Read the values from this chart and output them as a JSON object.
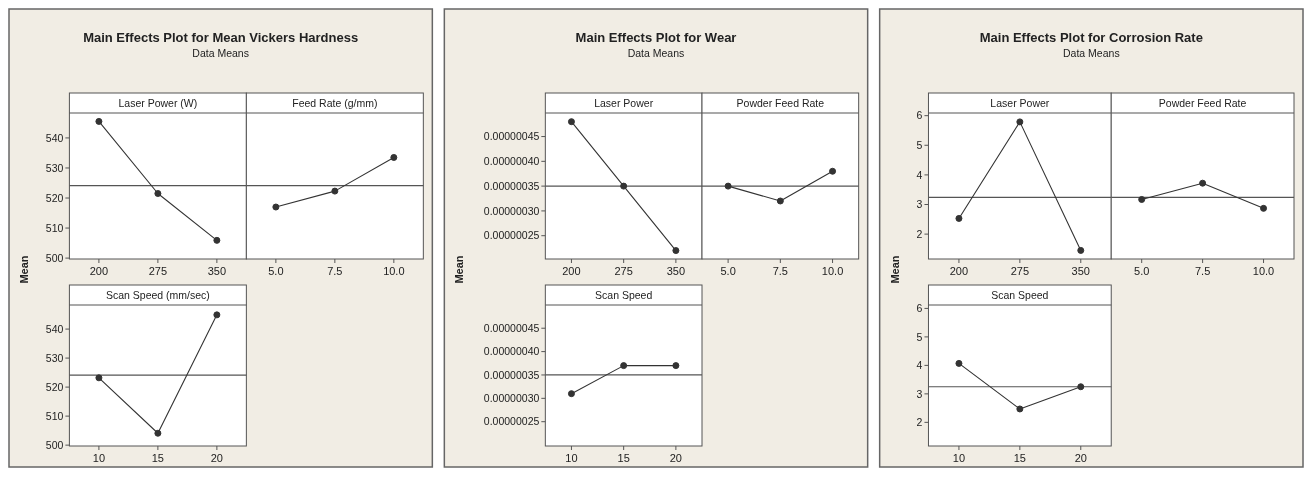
{
  "chart_data": [
    {
      "type": "line",
      "title": "Main Effects Plot for Mean Vickers Hardness",
      "subtitle": "Data Means",
      "ylabel": "Mean",
      "xlabel": "Laser Power (W)",
      "categories": [
        "200",
        "275",
        "350"
      ],
      "series": [
        {
          "color": "#333333",
          "values": [
            545.5,
            521.5,
            505.9
          ]
        }
      ],
      "ylim": [
        499.7,
        548.3
      ],
      "yticks": [
        500,
        510,
        520,
        530,
        540
      ],
      "ref_lines": [
        {
          "axis": "y",
          "value": 524.1,
          "color": "#555555"
        }
      ],
      "marker": "circle",
      "grid": false
    },
    {
      "type": "line",
      "xlabel": "Feed Rate (g/mm)",
      "categories": [
        "5.0",
        "7.5",
        "10.0"
      ],
      "series": [
        {
          "color": "#333333",
          "values": [
            517.0,
            522.3,
            533.5
          ]
        }
      ],
      "ylim": [
        499.7,
        548.3
      ],
      "ref_lines": [
        {
          "axis": "y",
          "value": 524.1,
          "color": "#555555"
        }
      ],
      "marker": "circle",
      "grid": false,
      "tick_labels": "x"
    },
    {
      "type": "line",
      "xlabel": "Scan Speed (mm/sec)",
      "categories": [
        "10",
        "15",
        "20"
      ],
      "series": [
        {
          "color": "#333333",
          "values": [
            523.2,
            504.1,
            544.9
          ]
        }
      ],
      "ylim": [
        499.7,
        548.3
      ],
      "yticks": [
        500,
        510,
        520,
        530,
        540
      ],
      "ref_lines": [
        {
          "axis": "y",
          "value": 524.1,
          "color": "#555555"
        }
      ],
      "marker": "circle",
      "grid": false
    },
    {
      "type": "line",
      "title": "Main Effects Plot for Wear",
      "subtitle": "Data Means",
      "ylabel": "Mean",
      "xlabel": "Laser Power",
      "categories": [
        "200",
        "275",
        "350"
      ],
      "series": [
        {
          "color": "#333333",
          "values": [
            4.8e-07,
            3.5e-07,
            2.2e-07
          ]
        }
      ],
      "ylim": [
        2.03e-07,
        4.975e-07
      ],
      "yticks": [
        {
          "value": 2.5e-07,
          "label": "0.00000025"
        },
        {
          "value": 3e-07,
          "label": "0.00000030"
        },
        {
          "value": 3.5e-07,
          "label": "0.00000035"
        },
        {
          "value": 4e-07,
          "label": "0.00000040"
        },
        {
          "value": 4.5e-07,
          "label": "0.00000045"
        }
      ],
      "ref_lines": [
        {
          "axis": "y",
          "value": 3.5e-07,
          "color": "#555555"
        }
      ],
      "marker": "circle",
      "grid": false
    },
    {
      "type": "line",
      "xlabel": "Powder Feed Rate",
      "categories": [
        "5.0",
        "7.5",
        "10.0"
      ],
      "series": [
        {
          "color": "#333333",
          "values": [
            3.5e-07,
            3.2e-07,
            3.8e-07
          ]
        }
      ],
      "ylim": [
        2.03e-07,
        4.975e-07
      ],
      "ref_lines": [
        {
          "axis": "y",
          "value": 3.5e-07,
          "color": "#555555"
        }
      ],
      "marker": "circle",
      "grid": false,
      "tick_labels": "x"
    },
    {
      "type": "line",
      "xlabel": "Scan Speed",
      "categories": [
        "10",
        "15",
        "20"
      ],
      "series": [
        {
          "color": "#333333",
          "values": [
            3.1e-07,
            3.7e-07,
            3.7e-07
          ]
        }
      ],
      "ylim": [
        1.98e-07,
        4.997e-07
      ],
      "yticks": [
        {
          "value": 2.5e-07,
          "label": "0.00000025"
        },
        {
          "value": 3e-07,
          "label": "0.00000030"
        },
        {
          "value": 3.5e-07,
          "label": "0.00000035"
        },
        {
          "value": 4e-07,
          "label": "0.00000040"
        },
        {
          "value": 4.5e-07,
          "label": "0.00000045"
        }
      ],
      "ref_lines": [
        {
          "axis": "y",
          "value": 3.5e-07,
          "color": "#555555"
        }
      ],
      "marker": "circle",
      "grid": false
    },
    {
      "type": "line",
      "title": "Main Effects Plot for Corrosion Rate",
      "subtitle": "Data Means",
      "ylabel": "Mean",
      "xlabel": "Laser Power",
      "categories": [
        "200",
        "275",
        "350"
      ],
      "series": [
        {
          "color": "#333333",
          "values": [
            2.53,
            5.79,
            1.45
          ]
        }
      ],
      "ylim": [
        1.16,
        6.09
      ],
      "yticks": [
        2,
        3,
        4,
        5,
        6
      ],
      "ref_lines": [
        {
          "axis": "y",
          "value": 3.24,
          "color": "#555555"
        }
      ],
      "marker": "circle",
      "grid": false
    },
    {
      "type": "line",
      "xlabel": "Powder Feed Rate",
      "categories": [
        "5.0",
        "7.5",
        "10.0"
      ],
      "series": [
        {
          "color": "#333333",
          "values": [
            3.17,
            3.72,
            2.87
          ]
        }
      ],
      "ylim": [
        1.16,
        6.09
      ],
      "ref_lines": [
        {
          "axis": "y",
          "value": 3.24,
          "color": "#555555"
        }
      ],
      "marker": "circle",
      "grid": false,
      "tick_labels": "x"
    },
    {
      "type": "line",
      "xlabel": "Scan Speed",
      "categories": [
        "10",
        "15",
        "20"
      ],
      "series": [
        {
          "color": "#333333",
          "values": [
            4.07,
            2.47,
            3.25
          ]
        }
      ],
      "ylim": [
        1.17,
        6.12
      ],
      "yticks": [
        2,
        3,
        4,
        5,
        6
      ],
      "ref_lines": [
        {
          "axis": "y",
          "value": 3.25,
          "color": "#555555"
        }
      ],
      "marker": "circle",
      "grid": false
    }
  ]
}
